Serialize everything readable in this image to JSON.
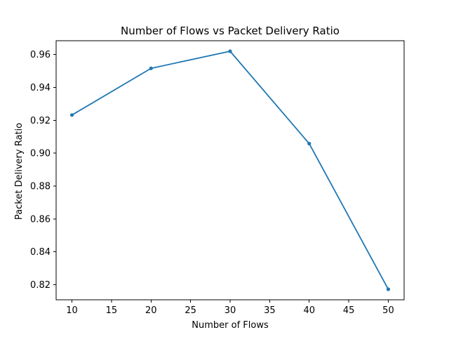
{
  "chart_data": {
    "type": "line",
    "title": "Number of Flows vs Packet Delivery Ratio",
    "xlabel": "Number of Flows",
    "ylabel": "Packet Delivery Ratio",
    "x": [
      10,
      20,
      30,
      40,
      50
    ],
    "series": [
      {
        "values": [
          0.9232,
          0.9516,
          0.962,
          0.9058,
          0.8172
        ],
        "color": "#1f77b4",
        "marker": "circle"
      }
    ],
    "xlim": [
      8,
      52
    ],
    "ylim": [
      0.8108,
      0.9684
    ],
    "xticks": [
      10,
      15,
      20,
      25,
      30,
      35,
      40,
      45,
      50
    ],
    "yticks": [
      0.82,
      0.84,
      0.86,
      0.88,
      0.9,
      0.92,
      0.94,
      0.96
    ],
    "ytick_labels": [
      "0.82",
      "0.84",
      "0.86",
      "0.88",
      "0.90",
      "0.92",
      "0.94",
      "0.96"
    ],
    "grid": false,
    "legend": false
  }
}
